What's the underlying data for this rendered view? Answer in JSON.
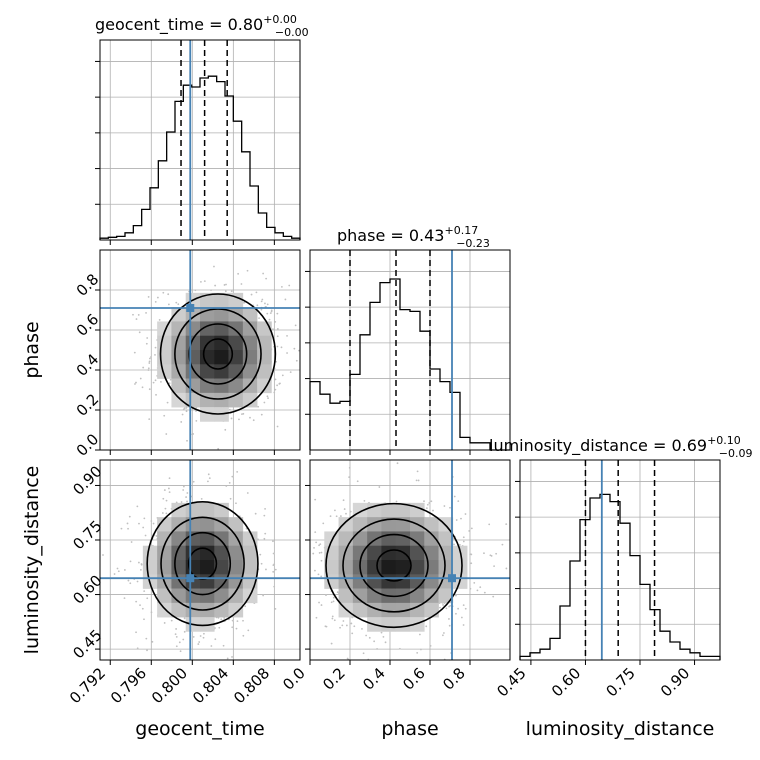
{
  "chart_data": {
    "type": "corner",
    "parameters": [
      "geocent_time",
      "phase",
      "luminosity_distance"
    ],
    "titles": [
      {
        "name": "geocent_time",
        "median": "0.80",
        "plus": "+0.00",
        "minus": "−0.00"
      },
      {
        "name": "phase",
        "median": "0.43",
        "plus": "+0.17",
        "minus": "−0.23"
      },
      {
        "name": "luminosity_distance",
        "median": "0.69",
        "plus": "+0.10",
        "minus": "−0.09"
      }
    ],
    "axis_labels": {
      "geocent_time": "geocent_time",
      "phase": "phase",
      "luminosity_distance": "luminosity_distance"
    },
    "ranges": {
      "geocent_time": [
        0.791,
        0.8105
      ],
      "phase": [
        0.0,
        1.0
      ],
      "luminosity_distance": [
        0.42,
        0.97
      ]
    },
    "ticks": {
      "geocent_time": [
        "0.792",
        "0.796",
        "0.800",
        "0.804",
        "0.808"
      ],
      "phase": [
        "0.0",
        "0.2",
        "0.4",
        "0.6",
        "0.8"
      ],
      "luminosity_distance": [
        "0.45",
        "0.60",
        "0.75",
        "0.90"
      ]
    },
    "truths": {
      "geocent_time": 0.7998,
      "phase": 0.71,
      "luminosity_distance": 0.645
    },
    "quantiles": {
      "geocent_time": [
        0.7989,
        0.8012,
        0.8034
      ],
      "phase": [
        0.2,
        0.43,
        0.6
      ],
      "luminosity_distance": [
        0.6,
        0.69,
        0.79
      ]
    },
    "histograms": {
      "geocent_time": [
        0.01,
        0.015,
        0.02,
        0.04,
        0.08,
        0.17,
        0.29,
        0.44,
        0.6,
        0.77,
        0.86,
        0.85,
        0.9,
        0.91,
        0.88,
        0.8,
        0.66,
        0.49,
        0.3,
        0.15,
        0.07,
        0.04,
        0.02,
        0.01
      ],
      "phase": [
        0.38,
        0.31,
        0.26,
        0.27,
        0.42,
        0.64,
        0.82,
        0.93,
        0.95,
        0.78,
        0.77,
        0.66,
        0.45,
        0.38,
        0.32,
        0.07,
        0.04,
        0.04,
        0.0,
        0.0
      ],
      "luminosity_distance": [
        0.02,
        0.04,
        0.06,
        0.12,
        0.3,
        0.55,
        0.78,
        0.9,
        0.92,
        0.88,
        0.76,
        0.58,
        0.42,
        0.28,
        0.16,
        0.1,
        0.06,
        0.04,
        0.02,
        0.02
      ]
    },
    "colors": {
      "truth": "#4682b4",
      "hist": "#000000",
      "points": "#c0c0c0",
      "density": "#000000",
      "grid": "#b0b0b0"
    },
    "grid": true
  }
}
